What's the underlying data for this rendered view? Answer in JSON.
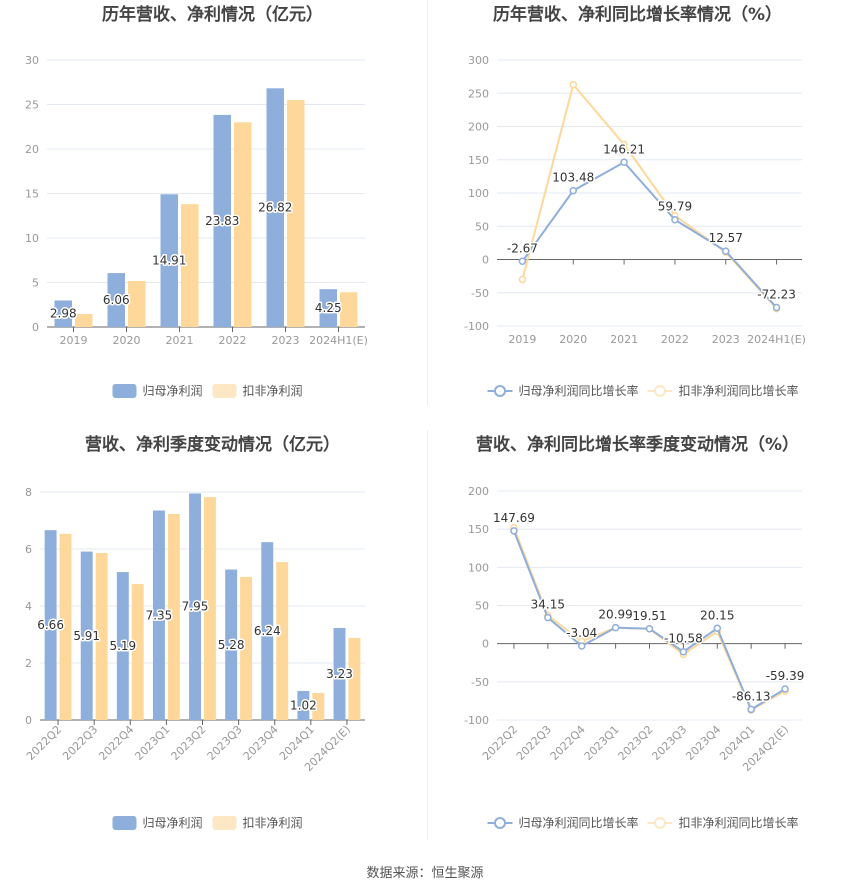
{
  "colors": {
    "blue": "#8eaedb",
    "orange": "#fdd89a",
    "orange_legend": "#fde7c4",
    "grid": "#e3e8f2",
    "axis": "#666666"
  },
  "footer": {
    "source": "数据来源：恒生聚源"
  },
  "legend": {
    "bar": [
      "归母净利润",
      "扣非净利润"
    ],
    "line": [
      "归母净利润同比增长率",
      "扣非净利润同比增长率"
    ]
  },
  "chart_data": [
    {
      "id": "annual-profit",
      "type": "bar",
      "title": "历年营收、净利情况（亿元）",
      "categories": [
        "2019",
        "2020",
        "2021",
        "2022",
        "2023",
        "2024H1(E)"
      ],
      "series": [
        {
          "name": "归母净利润",
          "values": [
            2.98,
            6.06,
            14.91,
            23.83,
            26.82,
            4.25
          ],
          "labeled": true
        },
        {
          "name": "扣非净利润",
          "values": [
            1.46,
            5.17,
            13.8,
            23.0,
            25.5,
            3.9
          ],
          "labeled": false
        }
      ],
      "yticks": [
        0,
        5,
        10,
        15,
        20,
        25,
        30
      ],
      "ylim": [
        0,
        30
      ],
      "xlabel": "",
      "ylabel": "",
      "grid": true,
      "legend_position": "bottom"
    },
    {
      "id": "annual-growth",
      "type": "line",
      "title": "历年营收、净利同比增长率情况（%）",
      "categories": [
        "2019",
        "2020",
        "2021",
        "2022",
        "2023",
        "2024H1(E)"
      ],
      "series": [
        {
          "name": "归母净利润同比增长率",
          "values": [
            -2.67,
            103.48,
            146.21,
            59.79,
            12.57,
            -72.23
          ],
          "labeled": true
        },
        {
          "name": "扣非净利润同比增长率",
          "values": [
            -30,
            263,
            173,
            66,
            11,
            -74
          ],
          "labeled": false
        }
      ],
      "yticks": [
        -100,
        -50,
        0,
        50,
        100,
        150,
        200,
        250,
        300
      ],
      "ylim": [
        -100,
        300
      ],
      "xlabel": "",
      "ylabel": "",
      "grid": true,
      "legend_position": "bottom"
    },
    {
      "id": "quarterly-profit",
      "type": "bar",
      "title": "营收、净利季度变动情况（亿元）",
      "categories": [
        "2022Q2",
        "2022Q3",
        "2022Q4",
        "2023Q1",
        "2023Q2",
        "2023Q3",
        "2023Q4",
        "2024Q1",
        "2024Q2(E)"
      ],
      "series": [
        {
          "name": "归母净利润",
          "values": [
            6.66,
            5.91,
            5.19,
            7.35,
            7.95,
            5.28,
            6.24,
            1.02,
            3.23
          ],
          "labeled": true
        },
        {
          "name": "扣非净利润",
          "values": [
            6.53,
            5.86,
            4.77,
            7.23,
            7.82,
            5.02,
            5.54,
            0.95,
            2.88
          ],
          "labeled": false
        }
      ],
      "yticks": [
        0,
        2,
        4,
        6,
        8
      ],
      "ylim": [
        0,
        8
      ],
      "xlabel": "",
      "ylabel": "",
      "grid": true,
      "rotated_xlabels": true,
      "legend_position": "bottom"
    },
    {
      "id": "quarterly-growth",
      "type": "line",
      "title": "营收、净利同比增长率季度变动情况（%）",
      "categories": [
        "2022Q2",
        "2022Q3",
        "2022Q4",
        "2023Q1",
        "2023Q2",
        "2023Q3",
        "2023Q4",
        "2024Q1",
        "2024Q2(E)"
      ],
      "series": [
        {
          "name": "归母净利润同比增长率",
          "values": [
            147.69,
            34.15,
            -3.04,
            20.99,
            19.51,
            -10.58,
            20.15,
            -86.13,
            -59.39
          ],
          "labeled": true
        },
        {
          "name": "扣非净利润同比增长率",
          "values": [
            152,
            37,
            3,
            21,
            19.5,
            -14,
            16,
            -87,
            -62
          ],
          "labeled": false
        }
      ],
      "yticks": [
        -100,
        -50,
        0,
        50,
        100,
        150,
        200
      ],
      "ylim": [
        -100,
        200
      ],
      "xlabel": "",
      "ylabel": "",
      "grid": true,
      "rotated_xlabels": true,
      "legend_position": "bottom"
    }
  ]
}
